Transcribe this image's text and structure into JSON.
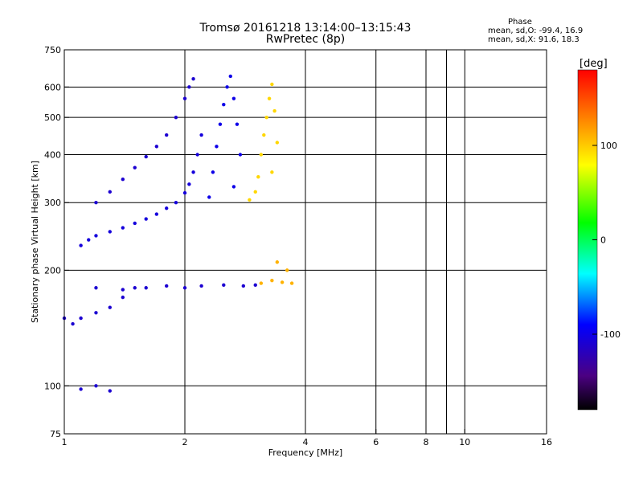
{
  "header": {
    "title": "Tromsø 20161218 13:14:00–13:15:43",
    "subtitle": "RwPretec (8p)",
    "phase_label": "Phase",
    "phase_o": "mean, sd,O: -99.4, 16.9",
    "phase_x": "mean, sd,X:  91.6, 18.3"
  },
  "colorbar": {
    "label": "[deg]",
    "ticks": [
      {
        "value": 100,
        "label": "100"
      },
      {
        "value": 0,
        "label": "0"
      },
      {
        "value": -100,
        "label": "-100"
      }
    ],
    "range": [
      -180,
      180
    ]
  },
  "chart_data": {
    "type": "scatter",
    "title": "Tromsø 20161218 13:14:00–13:15:43",
    "subtitle": "RwPretec (8p)",
    "xlabel": "Frequency [MHz]",
    "ylabel": "Stationary phase Virtual Height [km]",
    "x_scale": "log",
    "y_scale": "log",
    "xlim": [
      1,
      16
    ],
    "ylim": [
      75,
      750
    ],
    "x_ticks": [
      {
        "value": 1,
        "label": "1"
      },
      {
        "value": 2,
        "label": "2"
      },
      {
        "value": 4,
        "label": "4"
      },
      {
        "value": 6,
        "label": "6"
      },
      {
        "value": 8,
        "label": "8"
      },
      {
        "value": 10,
        "label": "10"
      },
      {
        "value": 16,
        "label": "16"
      }
    ],
    "x_grid": [
      2,
      4,
      6,
      8,
      9,
      10
    ],
    "y_ticks": [
      {
        "value": 75,
        "label": "75"
      },
      {
        "value": 100,
        "label": "100"
      },
      {
        "value": 200,
        "label": "200"
      },
      {
        "value": 300,
        "label": "300"
      },
      {
        "value": 400,
        "label": "400"
      },
      {
        "value": 500,
        "label": "500"
      },
      {
        "value": 600,
        "label": "600"
      },
      {
        "value": 750,
        "label": "750"
      }
    ],
    "y_grid": [
      100,
      200,
      300,
      400,
      500,
      600
    ],
    "grid": true,
    "color_scale": "rainbow phase [deg]",
    "series": [
      {
        "trace": "o_f_layer",
        "phase": -105,
        "points": [
          [
            1.1,
            232
          ],
          [
            1.15,
            240
          ],
          [
            1.2,
            246
          ],
          [
            1.3,
            252
          ],
          [
            1.4,
            258
          ],
          [
            1.5,
            265
          ],
          [
            1.6,
            272
          ],
          [
            1.7,
            280
          ],
          [
            1.8,
            290
          ],
          [
            1.9,
            300
          ],
          [
            2.0,
            318
          ],
          [
            2.05,
            335
          ],
          [
            2.1,
            360
          ],
          [
            2.15,
            400
          ],
          [
            2.2,
            450
          ]
        ]
      },
      {
        "trace": "o_f_upper",
        "phase": -110,
        "points": [
          [
            1.2,
            300
          ],
          [
            1.3,
            320
          ],
          [
            1.4,
            345
          ],
          [
            1.5,
            370
          ],
          [
            1.6,
            395
          ],
          [
            1.7,
            420
          ],
          [
            1.8,
            450
          ],
          [
            1.9,
            500
          ],
          [
            2.0,
            560
          ],
          [
            2.05,
            600
          ],
          [
            2.1,
            630
          ]
        ]
      },
      {
        "trace": "o_f_spread",
        "phase": -100,
        "points": [
          [
            2.3,
            310
          ],
          [
            2.35,
            360
          ],
          [
            2.4,
            420
          ],
          [
            2.45,
            480
          ],
          [
            2.5,
            540
          ],
          [
            2.55,
            600
          ],
          [
            2.6,
            640
          ],
          [
            2.65,
            560
          ],
          [
            2.7,
            480
          ],
          [
            2.75,
            400
          ],
          [
            2.65,
            330
          ]
        ]
      },
      {
        "trace": "x_f_spread",
        "phase": 95,
        "points": [
          [
            2.9,
            305
          ],
          [
            3.0,
            320
          ],
          [
            3.05,
            350
          ],
          [
            3.1,
            400
          ],
          [
            3.15,
            450
          ],
          [
            3.2,
            500
          ],
          [
            3.25,
            560
          ],
          [
            3.3,
            610
          ],
          [
            3.35,
            520
          ],
          [
            3.4,
            430
          ],
          [
            3.3,
            360
          ]
        ]
      },
      {
        "trace": "o_e_region",
        "phase": -110,
        "points": [
          [
            1.2,
            180
          ],
          [
            1.4,
            178
          ],
          [
            1.6,
            180
          ],
          [
            1.8,
            182
          ],
          [
            2.0,
            180
          ],
          [
            2.2,
            182
          ],
          [
            2.5,
            183
          ],
          [
            2.8,
            182
          ],
          [
            3.0,
            183
          ]
        ]
      },
      {
        "trace": "x_e_region",
        "phase": 110,
        "points": [
          [
            3.1,
            185
          ],
          [
            3.3,
            188
          ],
          [
            3.5,
            186
          ],
          [
            3.7,
            185
          ],
          [
            3.6,
            200
          ],
          [
            3.4,
            210
          ]
        ]
      },
      {
        "trace": "o_low_layer",
        "phase": -110,
        "points": [
          [
            1.0,
            150
          ],
          [
            1.05,
            145
          ],
          [
            1.1,
            150
          ],
          [
            1.2,
            155
          ],
          [
            1.3,
            160
          ],
          [
            1.4,
            170
          ],
          [
            1.5,
            180
          ],
          [
            1.1,
            98
          ],
          [
            1.2,
            100
          ],
          [
            1.3,
            97
          ]
        ]
      }
    ]
  }
}
